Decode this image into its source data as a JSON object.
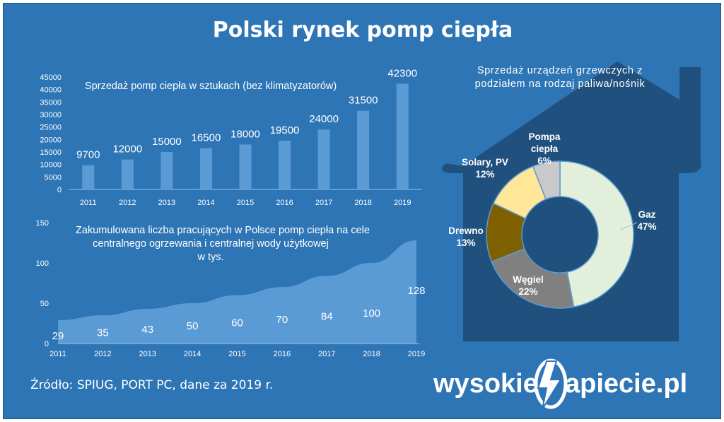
{
  "title": "Polski rynek pomp ciepła",
  "source": "Źródło: SPIUG, PORT PC, dane za 2019 r.",
  "logo": {
    "part1": "wysokie",
    "part2": "apiecie.pl"
  },
  "colors": {
    "background": "#2e75b6",
    "bar": "#5b9bd5",
    "area": "#5b9bd5",
    "house": "#1f4e79",
    "text": "#ffffff"
  },
  "chart_data": [
    {
      "type": "bar",
      "title": "Sprzedaż pomp ciepła w sztukach (bez klimatyzatorów)",
      "categories": [
        "2011",
        "2012",
        "2013",
        "2014",
        "2015",
        "2016",
        "2017",
        "2018",
        "2019"
      ],
      "values": [
        9700,
        12000,
        15000,
        16500,
        18000,
        19500,
        24000,
        31500,
        42300
      ],
      "yticks": [
        0,
        5000,
        10000,
        15000,
        20000,
        25000,
        30000,
        35000,
        40000,
        45000
      ],
      "ylim": [
        0,
        45000
      ],
      "grid": false,
      "data_labels": true
    },
    {
      "type": "area",
      "title_lines": [
        "Zakumulowana liczba pracujących w Polsce pomp ciepła na cele",
        "centralnego ogrzewania i centralnej wody użytkowej",
        "w tys."
      ],
      "x": [
        "2011",
        "2012",
        "2013",
        "2014",
        "2015",
        "2016",
        "2017",
        "2018",
        "2019"
      ],
      "values": [
        29,
        35,
        43,
        50,
        60,
        70,
        84,
        100,
        128
      ],
      "yticks": [
        0,
        50,
        100,
        150
      ],
      "ylim": [
        0,
        150
      ],
      "grid": false,
      "data_labels": true
    },
    {
      "type": "pie",
      "donut": true,
      "title_lines": [
        "Sprzedaż urządzeń grzewczych  z",
        "podziałem na rodzaj paliwa/nośnik"
      ],
      "slices": [
        {
          "label_lines": [
            "Gaz"
          ],
          "pct_label": "47%",
          "value": 47,
          "color": "#e2efda"
        },
        {
          "label_lines": [
            "Węgiel"
          ],
          "pct_label": "22%",
          "value": 22,
          "color": "#808080"
        },
        {
          "label_lines": [
            "Drewno"
          ],
          "pct_label": "13%",
          "value": 13,
          "color": "#7f6000"
        },
        {
          "label_lines": [
            "Solary, PV"
          ],
          "pct_label": "12%",
          "value": 12,
          "color": "#ffe699"
        },
        {
          "label_lines": [
            "Pompa",
            "ciepła"
          ],
          "pct_label": "6%",
          "value": 6,
          "color": "#c9c9c9"
        }
      ]
    }
  ]
}
